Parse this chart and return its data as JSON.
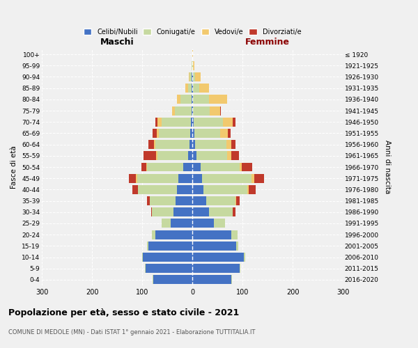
{
  "age_groups": [
    "0-4",
    "5-9",
    "10-14",
    "15-19",
    "20-24",
    "25-29",
    "30-34",
    "35-39",
    "40-44",
    "45-49",
    "50-54",
    "55-59",
    "60-64",
    "65-69",
    "70-74",
    "75-79",
    "80-84",
    "85-89",
    "90-94",
    "95-99",
    "100+"
  ],
  "birth_years": [
    "2016-2020",
    "2011-2015",
    "2006-2010",
    "2001-2005",
    "1996-2000",
    "1991-1995",
    "1986-1990",
    "1981-1985",
    "1976-1980",
    "1971-1975",
    "1966-1970",
    "1961-1965",
    "1956-1960",
    "1951-1955",
    "1946-1950",
    "1941-1945",
    "1936-1940",
    "1931-1935",
    "1926-1930",
    "1921-1925",
    "≤ 1920"
  ],
  "male": {
    "celibi": [
      78,
      93,
      98,
      88,
      73,
      43,
      38,
      33,
      30,
      28,
      18,
      8,
      6,
      4,
      3,
      2,
      1,
      1,
      1,
      0,
      0
    ],
    "coniugati": [
      1,
      1,
      2,
      2,
      8,
      18,
      42,
      52,
      78,
      82,
      72,
      62,
      68,
      62,
      58,
      33,
      22,
      8,
      4,
      1,
      0
    ],
    "vedovi": [
      0,
      0,
      0,
      0,
      0,
      0,
      0,
      0,
      1,
      2,
      2,
      2,
      3,
      5,
      8,
      5,
      8,
      5,
      2,
      0,
      0
    ],
    "divorziati": [
      0,
      0,
      0,
      0,
      0,
      0,
      2,
      5,
      10,
      15,
      10,
      25,
      10,
      8,
      5,
      0,
      0,
      0,
      0,
      0,
      0
    ]
  },
  "female": {
    "nubili": [
      78,
      95,
      103,
      88,
      78,
      43,
      33,
      28,
      22,
      20,
      16,
      8,
      6,
      4,
      3,
      2,
      1,
      1,
      1,
      0,
      0
    ],
    "coniugate": [
      1,
      1,
      3,
      3,
      12,
      22,
      48,
      58,
      88,
      98,
      78,
      62,
      62,
      52,
      58,
      33,
      33,
      13,
      5,
      2,
      0
    ],
    "vedove": [
      0,
      0,
      0,
      0,
      0,
      0,
      0,
      1,
      2,
      5,
      5,
      8,
      10,
      15,
      20,
      20,
      35,
      20,
      10,
      2,
      2
    ],
    "divorziate": [
      0,
      0,
      0,
      0,
      0,
      0,
      5,
      8,
      15,
      20,
      20,
      15,
      8,
      5,
      5,
      2,
      0,
      0,
      0,
      0,
      0
    ]
  },
  "colors": {
    "celibi": "#4472C4",
    "coniugati": "#C6D9A0",
    "vedovi": "#F2C96E",
    "divorziati": "#C0392B"
  },
  "xlim": 300,
  "title": "Popolazione per età, sesso e stato civile - 2021",
  "subtitle": "COMUNE DI MEDOLE (MN) - Dati ISTAT 1° gennaio 2021 - Elaborazione TUTTITALIA.IT",
  "ylabel_left": "Fasce di età",
  "ylabel_right": "Anni di nascita",
  "xlabel_left": "Maschi",
  "xlabel_right": "Femmine",
  "femmine_color": "#8B0000",
  "background_color": "#f0f0f0"
}
